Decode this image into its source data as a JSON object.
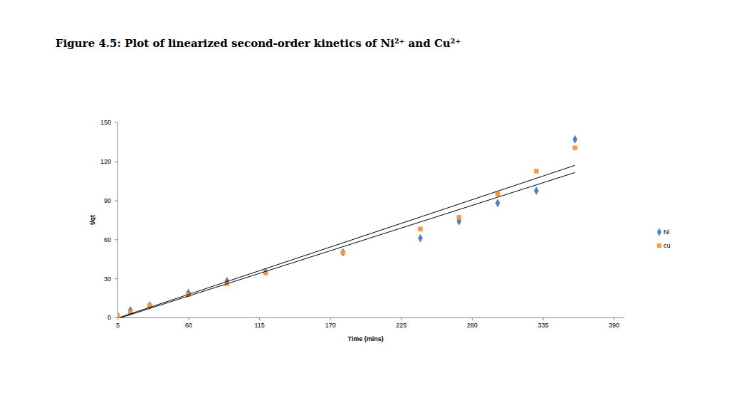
{
  "chart_data": {
    "type": "scatter",
    "title": "Figure 4.5: Plot of linearized second-order kinetics of Ni²⁺ and Cu²⁺",
    "x_label": "Time (mins)",
    "y_label": "t/qt",
    "xlim": [
      5,
      398
    ],
    "xticks": [
      5,
      60,
      115,
      170,
      225,
      280,
      335,
      390
    ],
    "ylim": [
      0,
      150
    ],
    "yticks": [
      0,
      30,
      60,
      90,
      120,
      150
    ],
    "grid": false,
    "legend": "right",
    "x": [
      5,
      15,
      30,
      60,
      90,
      120,
      180,
      240,
      270,
      300,
      330,
      360
    ],
    "series": [
      {
        "name": "Ni",
        "color": "#4F81BD",
        "marker": "diamond",
        "values": [
          1.6,
          5.5,
          9.3,
          19,
          28,
          35,
          50,
          61,
          74,
          88,
          97.5,
          137
        ],
        "trendline": {
          "x": [
            5,
            360
          ],
          "values": [
            -1,
            111.5
          ]
        }
      },
      {
        "name": "cu",
        "color": "#F79646",
        "marker": "square",
        "values": [
          1.5,
          4,
          9,
          17.5,
          26,
          34.5,
          50,
          68,
          77,
          95,
          112.5,
          130.5
        ],
        "trendline": {
          "x": [
            5,
            360
          ],
          "values": [
            -0.5,
            117
          ]
        }
      }
    ]
  }
}
